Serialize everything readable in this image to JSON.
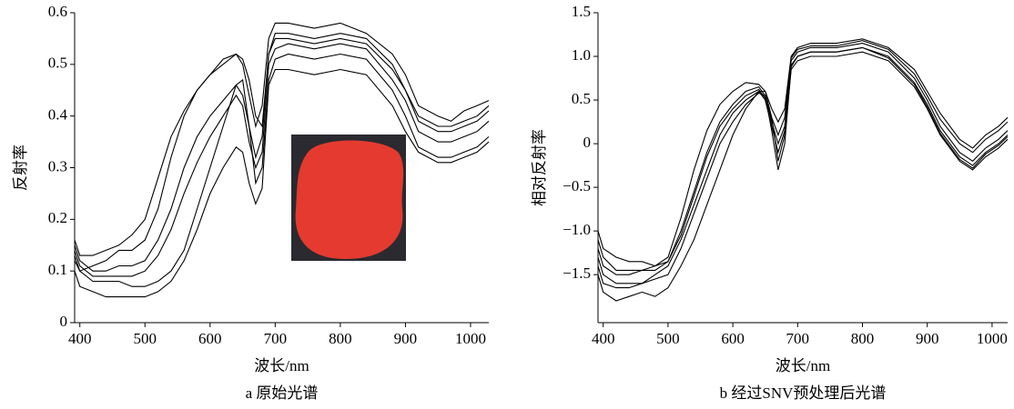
{
  "chart_data": [
    {
      "type": "line",
      "title": "a 原始光谱",
      "x_label": "波长/nm",
      "y_label": "反射率",
      "x": [
        392,
        400,
        420,
        440,
        460,
        480,
        500,
        520,
        540,
        560,
        580,
        600,
        620,
        640,
        650,
        660,
        670,
        680,
        690,
        700,
        720,
        760,
        800,
        840,
        880,
        900,
        920,
        950,
        970,
        990,
        1010,
        1028
      ],
      "xlim": [
        392,
        1028
      ],
      "xticks": [
        400,
        500,
        600,
        700,
        800,
        900,
        1000
      ],
      "ylim": [
        0,
        0.6
      ],
      "yticks": [
        0,
        0.1,
        0.2,
        0.3,
        0.4,
        0.5,
        0.6
      ],
      "series": [
        {
          "color": "#000000",
          "values": [
            0.14,
            0.11,
            0.09,
            0.09,
            0.09,
            0.09,
            0.1,
            0.13,
            0.18,
            0.25,
            0.31,
            0.36,
            0.4,
            0.44,
            0.42,
            0.35,
            0.3,
            0.33,
            0.5,
            0.53,
            0.54,
            0.53,
            0.54,
            0.53,
            0.47,
            0.43,
            0.37,
            0.35,
            0.35,
            0.36,
            0.37,
            0.39
          ]
        },
        {
          "color": "#000000",
          "values": [
            0.16,
            0.13,
            0.13,
            0.14,
            0.15,
            0.17,
            0.2,
            0.28,
            0.36,
            0.41,
            0.45,
            0.48,
            0.5,
            0.52,
            0.5,
            0.44,
            0.38,
            0.42,
            0.55,
            0.58,
            0.58,
            0.57,
            0.58,
            0.56,
            0.52,
            0.48,
            0.42,
            0.4,
            0.39,
            0.41,
            0.42,
            0.43
          ]
        },
        {
          "color": "#000000",
          "values": [
            0.1,
            0.07,
            0.06,
            0.05,
            0.05,
            0.05,
            0.05,
            0.06,
            0.08,
            0.12,
            0.18,
            0.25,
            0.3,
            0.34,
            0.33,
            0.27,
            0.23,
            0.26,
            0.46,
            0.49,
            0.49,
            0.48,
            0.49,
            0.48,
            0.42,
            0.37,
            0.33,
            0.31,
            0.31,
            0.32,
            0.33,
            0.35
          ]
        },
        {
          "color": "#000000",
          "values": [
            0.12,
            0.1,
            0.11,
            0.12,
            0.14,
            0.14,
            0.16,
            0.22,
            0.32,
            0.4,
            0.45,
            0.48,
            0.51,
            0.52,
            0.51,
            0.47,
            0.4,
            0.38,
            0.52,
            0.56,
            0.56,
            0.55,
            0.56,
            0.55,
            0.5,
            0.45,
            0.4,
            0.38,
            0.38,
            0.39,
            0.4,
            0.42
          ]
        },
        {
          "color": "#000000",
          "values": [
            0.13,
            0.1,
            0.08,
            0.08,
            0.08,
            0.07,
            0.07,
            0.08,
            0.1,
            0.14,
            0.22,
            0.3,
            0.38,
            0.46,
            0.47,
            0.38,
            0.27,
            0.3,
            0.47,
            0.51,
            0.52,
            0.51,
            0.52,
            0.51,
            0.45,
            0.4,
            0.34,
            0.32,
            0.32,
            0.33,
            0.34,
            0.36
          ]
        },
        {
          "color": "#000000",
          "values": [
            0.15,
            0.12,
            0.1,
            0.1,
            0.11,
            0.11,
            0.12,
            0.16,
            0.22,
            0.3,
            0.36,
            0.4,
            0.43,
            0.46,
            0.44,
            0.38,
            0.32,
            0.36,
            0.52,
            0.55,
            0.55,
            0.54,
            0.55,
            0.54,
            0.49,
            0.45,
            0.39,
            0.37,
            0.37,
            0.38,
            0.39,
            0.41
          ]
        }
      ]
    },
    {
      "type": "line",
      "title": "b 经过SNV预处理后光谱",
      "x_label": "波长/nm",
      "y_label": "相对反射率",
      "x": [
        392,
        400,
        420,
        440,
        460,
        480,
        500,
        520,
        540,
        560,
        580,
        600,
        620,
        640,
        650,
        660,
        670,
        680,
        690,
        700,
        720,
        760,
        800,
        840,
        880,
        900,
        920,
        950,
        970,
        990,
        1010,
        1024
      ],
      "xlim": [
        392,
        1024
      ],
      "xticks": [
        400,
        500,
        600,
        700,
        800,
        900,
        1000
      ],
      "ylim": [
        -2.05,
        1.5
      ],
      "yticks": [
        {
          "value": -1.5,
          "label": "−1.5"
        },
        {
          "value": -1.0,
          "label": "−1.0"
        },
        {
          "value": -0.5,
          "label": "−0.5"
        },
        0,
        0.5,
        {
          "value": 1.0,
          "label": "1.0"
        },
        1.5
      ],
      "series": [
        {
          "color": "#000000",
          "values": [
            -1.1,
            -1.3,
            -1.45,
            -1.45,
            -1.45,
            -1.45,
            -1.35,
            -1.0,
            -0.55,
            -0.1,
            0.25,
            0.45,
            0.6,
            0.65,
            0.55,
            0.25,
            0.0,
            0.2,
            0.95,
            1.05,
            1.1,
            1.1,
            1.15,
            1.05,
            0.75,
            0.5,
            0.2,
            -0.1,
            -0.2,
            -0.05,
            0.05,
            0.15
          ]
        },
        {
          "color": "#000000",
          "values": [
            -1.3,
            -1.5,
            -1.6,
            -1.6,
            -1.6,
            -1.5,
            -1.4,
            -1.1,
            -0.7,
            -0.3,
            0.1,
            0.35,
            0.5,
            0.6,
            0.5,
            0.2,
            -0.1,
            0.15,
            0.9,
            1.0,
            1.05,
            1.05,
            1.1,
            1.0,
            0.7,
            0.45,
            0.15,
            -0.15,
            -0.25,
            -0.1,
            0.0,
            0.1
          ]
        },
        {
          "color": "#000000",
          "values": [
            -1.0,
            -1.2,
            -1.3,
            -1.35,
            -1.35,
            -1.4,
            -1.3,
            -0.85,
            -0.3,
            0.15,
            0.45,
            0.6,
            0.7,
            0.68,
            0.6,
            0.4,
            0.25,
            0.4,
            1.0,
            1.1,
            1.15,
            1.15,
            1.2,
            1.1,
            0.85,
            0.6,
            0.35,
            0.05,
            -0.05,
            0.1,
            0.2,
            0.3
          ]
        },
        {
          "color": "#000000",
          "values": [
            -1.5,
            -1.7,
            -1.8,
            -1.75,
            -1.7,
            -1.75,
            -1.65,
            -1.4,
            -1.1,
            -0.7,
            -0.3,
            0.1,
            0.4,
            0.6,
            0.6,
            0.3,
            -0.2,
            0.1,
            0.85,
            0.95,
            1.0,
            1.0,
            1.05,
            0.95,
            0.65,
            0.4,
            0.1,
            -0.2,
            -0.3,
            -0.15,
            -0.05,
            0.05
          ]
        },
        {
          "color": "#000000",
          "values": [
            -1.2,
            -1.4,
            -1.5,
            -1.5,
            -1.45,
            -1.4,
            -1.35,
            -1.05,
            -0.6,
            -0.15,
            0.2,
            0.4,
            0.55,
            0.62,
            0.52,
            0.3,
            0.1,
            0.3,
            0.98,
            1.08,
            1.12,
            1.12,
            1.18,
            1.08,
            0.8,
            0.55,
            0.28,
            0.0,
            -0.1,
            0.05,
            0.15,
            0.25
          ]
        },
        {
          "color": "#000000",
          "values": [
            -1.4,
            -1.6,
            -1.65,
            -1.65,
            -1.6,
            -1.55,
            -1.5,
            -1.2,
            -0.8,
            -0.4,
            0.0,
            0.25,
            0.45,
            0.58,
            0.55,
            0.15,
            -0.3,
            0.0,
            0.88,
            1.0,
            1.05,
            1.05,
            1.1,
            0.98,
            0.68,
            0.42,
            0.12,
            -0.18,
            -0.28,
            -0.12,
            -0.02,
            0.08
          ]
        }
      ]
    }
  ]
}
